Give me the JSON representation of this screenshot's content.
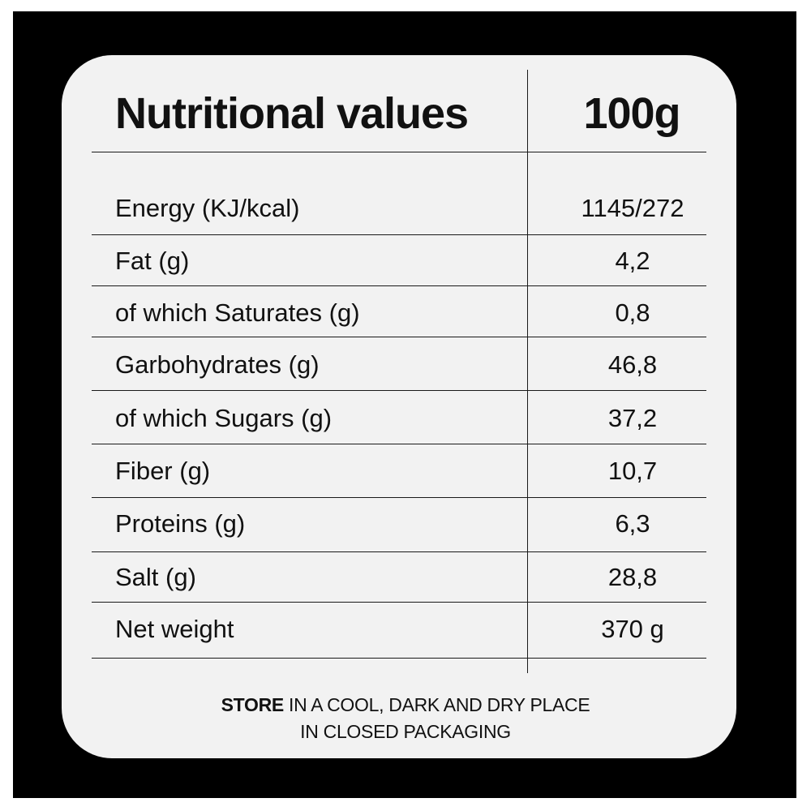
{
  "table": {
    "title": "Nutritional values",
    "column_header": "100g",
    "rows": [
      {
        "label": "Energy (KJ/kcal)",
        "value": "1145/272"
      },
      {
        "label": "Fat (g)",
        "value": "4,2"
      },
      {
        "label": "of which Saturates (g)",
        "value": "0,8"
      },
      {
        "label": "Garbohydrates (g)",
        "value": "46,8"
      },
      {
        "label": "of which Sugars (g)",
        "value": "37,2"
      },
      {
        "label": "Fiber (g)",
        "value": "10,7"
      },
      {
        "label": "Proteins (g)",
        "value": "6,3"
      },
      {
        "label": "Salt (g)",
        "value": "28,8"
      },
      {
        "label": "Net weight",
        "value": "370 g"
      }
    ]
  },
  "footer": {
    "line1_bold": "STORE",
    "line1_rest": " IN A COOL, DARK AND DRY PLACE",
    "line2": "IN CLOSED PACKAGING"
  },
  "colors": {
    "background_frame": "#000000",
    "card": "#f2f2f2",
    "text": "#111111"
  }
}
